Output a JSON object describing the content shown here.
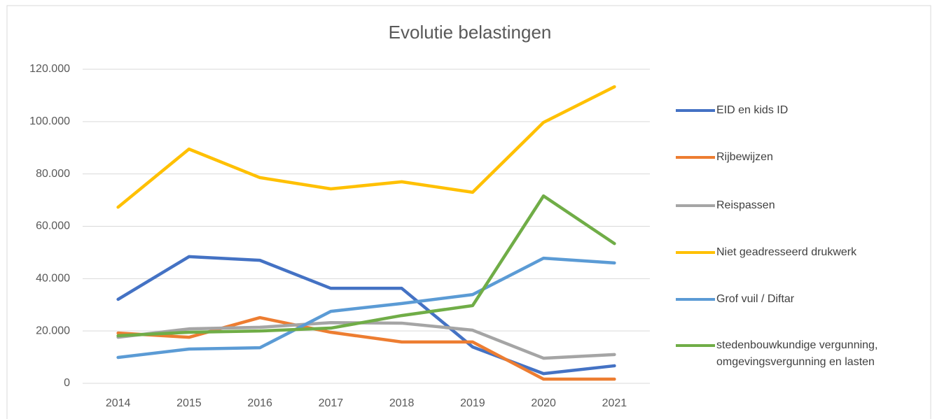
{
  "chart_data": {
    "type": "line",
    "title": "Evolutie belastingen",
    "categories": [
      "2014",
      "2015",
      "2016",
      "2017",
      "2018",
      "2019",
      "2020",
      "2021"
    ],
    "series": [
      {
        "name": "EID en kids ID",
        "color": "#4472c4",
        "values": [
          32100,
          48400,
          47000,
          36300,
          36300,
          13900,
          3700,
          6700
        ]
      },
      {
        "name": "Rijbewijzen",
        "color": "#ed7d31",
        "values": [
          19200,
          17600,
          25100,
          19500,
          15800,
          15800,
          1600,
          1600
        ]
      },
      {
        "name": "Reispassen",
        "color": "#a5a5a5",
        "values": [
          17600,
          20800,
          21400,
          23200,
          23000,
          20300,
          9600,
          11000
        ]
      },
      {
        "name": "Niet geadresseerd drukwerk",
        "color": "#ffc000",
        "values": [
          67300,
          89500,
          78600,
          74300,
          77000,
          73000,
          99700,
          113300
        ]
      },
      {
        "name": "Grof vuil / Diftar",
        "color": "#5b9bd5",
        "values": [
          9900,
          13100,
          13600,
          27500,
          30500,
          33900,
          47800,
          46000
        ]
      },
      {
        "name": "stedenbouwkundige vergunning, omgevingsvergunning en lasten",
        "color": "#70ad47",
        "values": [
          18200,
          19500,
          20000,
          21100,
          25900,
          29700,
          71600,
          53400
        ]
      }
    ],
    "ylim": [
      0,
      120000
    ],
    "yticks": [
      0,
      {
        "value": 20000,
        "label": "20.000"
      },
      {
        "value": 40000,
        "label": "40.000"
      },
      {
        "value": 60000,
        "label": "60.000"
      },
      {
        "value": 80000,
        "label": "80.000"
      },
      {
        "value": 100000,
        "label": "100.000"
      },
      {
        "value": 120000,
        "label": "120.000"
      }
    ],
    "grid": true,
    "legend": "right"
  }
}
